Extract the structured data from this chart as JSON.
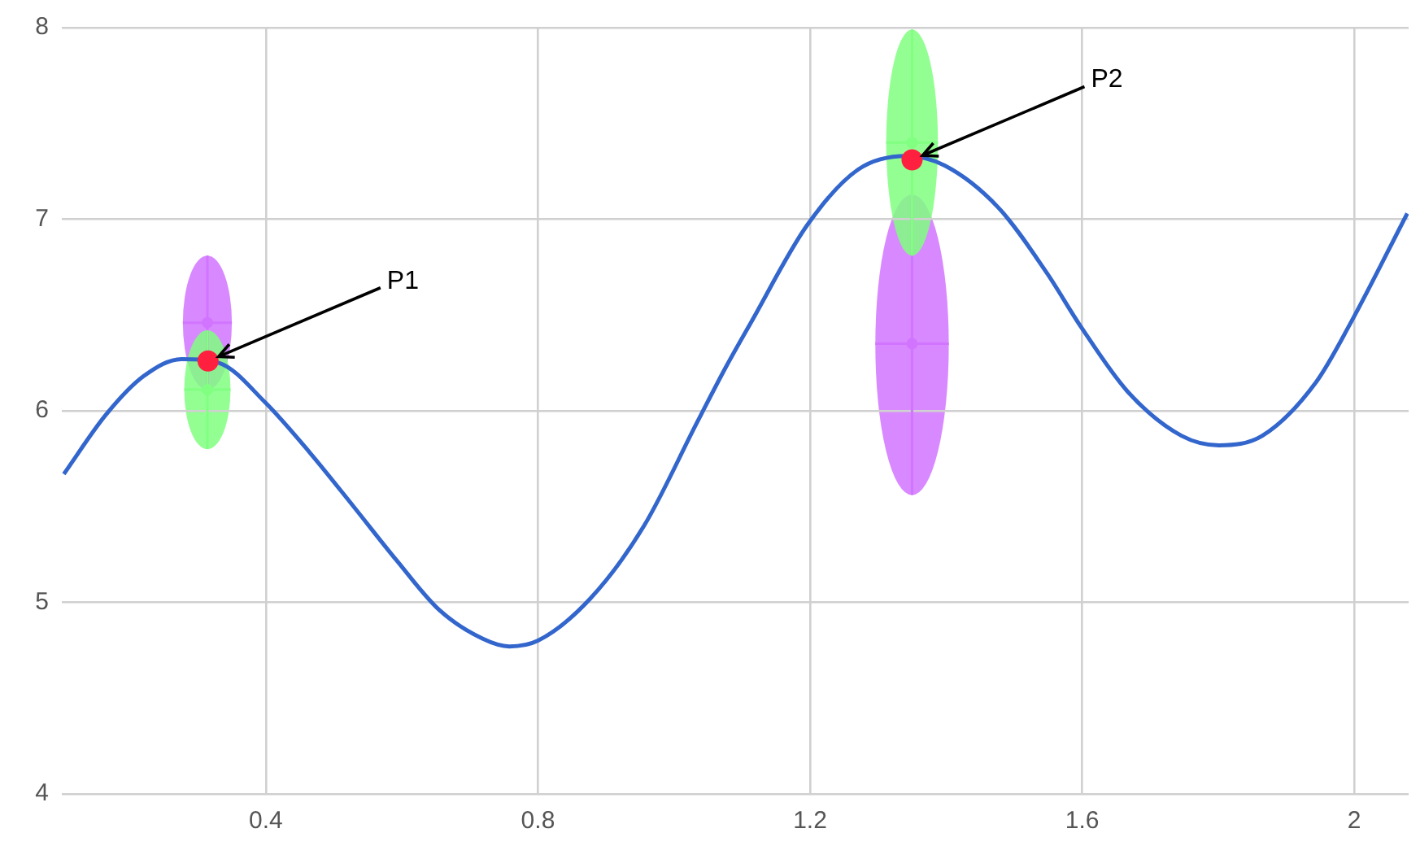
{
  "chart_data": {
    "type": "line",
    "xlim": [
      0.1,
      2.08
    ],
    "ylim": [
      4,
      8
    ],
    "xticks": [
      0.4,
      0.8,
      1.2,
      1.6,
      2
    ],
    "yticks": [
      4,
      5,
      6,
      7,
      8
    ],
    "grid": true,
    "legend": false,
    "series": [
      {
        "type": "line",
        "color": "#3366cc",
        "x": [
          0.103,
          0.165,
          0.22,
          0.276,
          0.331,
          0.4,
          0.465,
          0.529,
          0.592,
          0.655,
          0.719,
          0.758,
          0.8,
          0.877,
          0.956,
          1.034,
          1.075,
          1.113,
          1.196,
          1.271,
          1.342,
          1.398,
          1.477,
          1.548,
          1.598,
          1.667,
          1.746,
          1.801,
          1.865,
          1.944,
          1.995,
          2.078
        ],
        "values": [
          5.67,
          5.98,
          6.18,
          6.27,
          6.25,
          6.04,
          5.78,
          5.5,
          5.22,
          4.96,
          4.81,
          4.77,
          4.8,
          5.02,
          5.4,
          5.94,
          6.22,
          6.46,
          6.97,
          7.26,
          7.33,
          7.28,
          7.06,
          6.72,
          6.44,
          6.1,
          5.87,
          5.82,
          5.87,
          6.15,
          6.46,
          7.03
        ]
      },
      {
        "type": "scatter",
        "color": "#d174ff",
        "x": [
          0.314,
          1.35
        ],
        "values": [
          6.46,
          6.35
        ],
        "errors": [
          [
            6.11,
            6.81
          ],
          [
            5.56,
            7.13
          ]
        ],
        "xerrors": [
          0.036,
          0.054
        ]
      },
      {
        "type": "scatter",
        "color": "#80ff80",
        "x": [
          0.314,
          1.35
        ],
        "values": [
          6.11,
          7.4
        ],
        "errors": [
          [
            5.8,
            6.42
          ],
          [
            6.81,
            7.99
          ]
        ],
        "xerrors": [
          0.034,
          0.038
        ]
      },
      {
        "type": "scatter",
        "color": "#ff2040",
        "marker": "circle",
        "x": [
          0.315,
          1.35
        ],
        "values": [
          6.26,
          7.31
        ]
      }
    ],
    "annotations": [
      {
        "text": "P1",
        "x": 0.315,
        "y": 6.26
      },
      {
        "text": "P2",
        "x": 1.35,
        "y": 7.31
      }
    ]
  }
}
